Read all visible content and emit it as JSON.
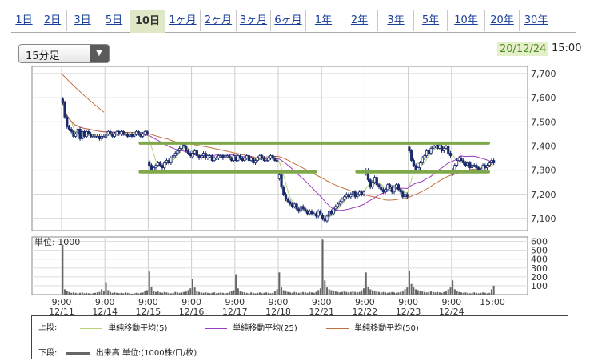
{
  "tabs": [
    {
      "label": "1日",
      "active": false
    },
    {
      "label": "2日",
      "active": false
    },
    {
      "label": "3日",
      "active": false
    },
    {
      "label": "5日",
      "active": false
    },
    {
      "label": "10日",
      "active": true
    },
    {
      "label": "1ヶ月",
      "active": false
    },
    {
      "label": "2ヶ月",
      "active": false
    },
    {
      "label": "3ヶ月",
      "active": false
    },
    {
      "label": "6ヶ月",
      "active": false
    },
    {
      "label": "1年",
      "active": false
    },
    {
      "label": "2年",
      "active": false
    },
    {
      "label": "3年",
      "active": false
    },
    {
      "label": "5年",
      "active": false
    },
    {
      "label": "10年",
      "active": false
    },
    {
      "label": "20年",
      "active": false
    },
    {
      "label": "30年",
      "active": false
    }
  ],
  "interval": {
    "selected": "15分足"
  },
  "timestamp": {
    "date": "20/12/24",
    "time": "15:00"
  },
  "legend": {
    "upper_label": "上段:",
    "lower_label": "下段:",
    "items": [
      {
        "label": "単純移動平均(5)",
        "color": "#b9d07a"
      },
      {
        "label": "単純移動平均(25)",
        "color": "#9b3dbf"
      },
      {
        "label": "単純移動平均(50)",
        "color": "#c07040"
      }
    ],
    "volume_label": "出来高 単位:(1000株/口/枚)"
  },
  "chart_data": {
    "type": "candlestick",
    "price_axis": {
      "ticks": [
        7100,
        7200,
        7300,
        7400,
        7500,
        7600,
        7700
      ],
      "ylim": [
        7050,
        7730
      ]
    },
    "volume_axis": {
      "unit_label": "単位: 1000",
      "ticks": [
        100,
        200,
        300,
        400,
        500,
        600
      ],
      "ylim": [
        0,
        650
      ]
    },
    "x_labels": [
      {
        "time": "9:00",
        "date": "12/11"
      },
      {
        "time": "9:00",
        "date": "12/14"
      },
      {
        "time": "9:00",
        "date": "12/15"
      },
      {
        "time": "9:00",
        "date": "12/16"
      },
      {
        "time": "9:00",
        "date": "12/17"
      },
      {
        "time": "9:00",
        "date": "12/18"
      },
      {
        "time": "9:00",
        "date": "12/21"
      },
      {
        "time": "9:00",
        "date": "12/22"
      },
      {
        "time": "9:00",
        "date": "12/23"
      },
      {
        "time": "9:00",
        "date": "12/24"
      },
      {
        "time": "15:00",
        "date": ""
      }
    ],
    "sessions": [
      {
        "date": "12/11",
        "closes": [
          7580,
          7520,
          7480,
          7470,
          7460,
          7440,
          7450,
          7470,
          7430,
          7460,
          7440,
          7460,
          7450,
          7440,
          7440,
          7440,
          7440,
          7430,
          7440,
          7440
        ]
      },
      {
        "date": "12/14",
        "closes": [
          7450,
          7460,
          7450,
          7440,
          7450,
          7460,
          7450,
          7460,
          7450,
          7450,
          7440,
          7450,
          7440,
          7450,
          7460,
          7450,
          7440,
          7450,
          7460,
          7450
        ]
      },
      {
        "date": "12/15",
        "closes": [
          7320,
          7300,
          7310,
          7320,
          7330,
          7320,
          7310,
          7330,
          7340,
          7330,
          7350,
          7360,
          7370,
          7380,
          7390,
          7410,
          7400,
          7380,
          7370,
          7360
        ]
      },
      {
        "date": "12/16",
        "closes": [
          7370,
          7380,
          7360,
          7350,
          7360,
          7370,
          7350,
          7360,
          7360,
          7340,
          7350,
          7350,
          7360,
          7360,
          7350,
          7360,
          7360,
          7350,
          7340,
          7360
        ]
      },
      {
        "date": "12/17",
        "closes": [
          7340,
          7360,
          7350,
          7340,
          7350,
          7360,
          7340,
          7350,
          7330,
          7340,
          7350,
          7360,
          7350,
          7340,
          7340,
          7350,
          7360,
          7350,
          7340,
          7340
        ]
      },
      {
        "date": "12/18",
        "closes": [
          7280,
          7230,
          7200,
          7180,
          7170,
          7160,
          7150,
          7160,
          7140,
          7130,
          7150,
          7140,
          7130,
          7120,
          7130,
          7120,
          7120,
          7110,
          7130,
          7120
        ]
      },
      {
        "date": "12/21",
        "closes": [
          7100,
          7090,
          7110,
          7130,
          7120,
          7140,
          7150,
          7160,
          7170,
          7180,
          7190,
          7200,
          7190,
          7200,
          7210,
          7190,
          7200,
          7210,
          7200,
          7210
        ]
      },
      {
        "date": "12/22",
        "closes": [
          7300,
          7260,
          7230,
          7250,
          7270,
          7240,
          7230,
          7220,
          7210,
          7220,
          7240,
          7230,
          7210,
          7230,
          7240,
          7220,
          7210,
          7190,
          7200,
          7190
        ]
      },
      {
        "date": "12/23",
        "closes": [
          7380,
          7340,
          7320,
          7300,
          7310,
          7330,
          7350,
          7360,
          7380,
          7370,
          7390,
          7400,
          7410,
          7390,
          7400,
          7380,
          7390,
          7400,
          7370,
          7360
        ]
      },
      {
        "date": "12/24",
        "closes": [
          7300,
          7320,
          7340,
          7350,
          7340,
          7330,
          7320,
          7330,
          7310,
          7320,
          7320,
          7310,
          7300,
          7300,
          7320,
          7310,
          7320,
          7330,
          7340,
          7330
        ]
      }
    ],
    "volumes": [
      [
        560,
        60,
        40,
        30,
        20,
        25,
        20,
        15,
        20,
        25,
        15,
        20,
        15,
        10,
        15,
        20,
        25,
        30,
        60,
        40
      ],
      [
        140,
        50,
        30,
        20,
        25,
        20,
        15,
        20,
        15,
        25,
        20,
        15,
        10,
        15,
        20,
        15,
        20,
        25,
        40,
        50
      ],
      [
        260,
        90,
        40,
        30,
        35,
        25,
        20,
        30,
        25,
        20,
        15,
        20,
        30,
        25,
        20,
        25,
        30,
        35,
        50,
        70
      ],
      [
        180,
        80,
        40,
        30,
        25,
        20,
        25,
        20,
        15,
        20,
        25,
        15,
        20,
        25,
        20,
        15,
        20,
        30,
        40,
        50
      ],
      [
        230,
        70,
        40,
        30,
        25,
        20,
        15,
        25,
        20,
        15,
        20,
        25,
        15,
        20,
        25,
        20,
        15,
        20,
        35,
        60
      ],
      [
        250,
        80,
        50,
        40,
        30,
        25,
        20,
        30,
        25,
        20,
        25,
        30,
        25,
        20,
        30,
        25,
        20,
        30,
        50,
        70
      ],
      [
        620,
        160,
        80,
        60,
        50,
        40,
        35,
        30,
        25,
        30,
        35,
        30,
        25,
        30,
        35,
        30,
        25,
        30,
        50,
        70
      ],
      [
        250,
        90,
        60,
        50,
        40,
        35,
        30,
        25,
        30,
        25,
        20,
        25,
        30,
        25,
        20,
        25,
        30,
        35,
        60,
        80
      ],
      [
        270,
        120,
        80,
        60,
        50,
        40,
        35,
        30,
        25,
        30,
        35,
        30,
        25,
        30,
        25,
        20,
        30,
        35,
        60,
        80
      ],
      [
        160,
        60,
        40,
        30,
        25,
        20,
        25,
        20,
        15,
        20,
        25,
        20,
        15,
        20,
        25,
        20,
        15,
        20,
        60,
        100
      ]
    ],
    "support_resistance_lines": [
      {
        "value": 7412,
        "from": "12/15",
        "to": "12/24"
      },
      {
        "value": 7293,
        "from": "12/15",
        "to": "12/18"
      },
      {
        "value": 7293,
        "from": "12/22",
        "to": "12/24"
      }
    ]
  }
}
